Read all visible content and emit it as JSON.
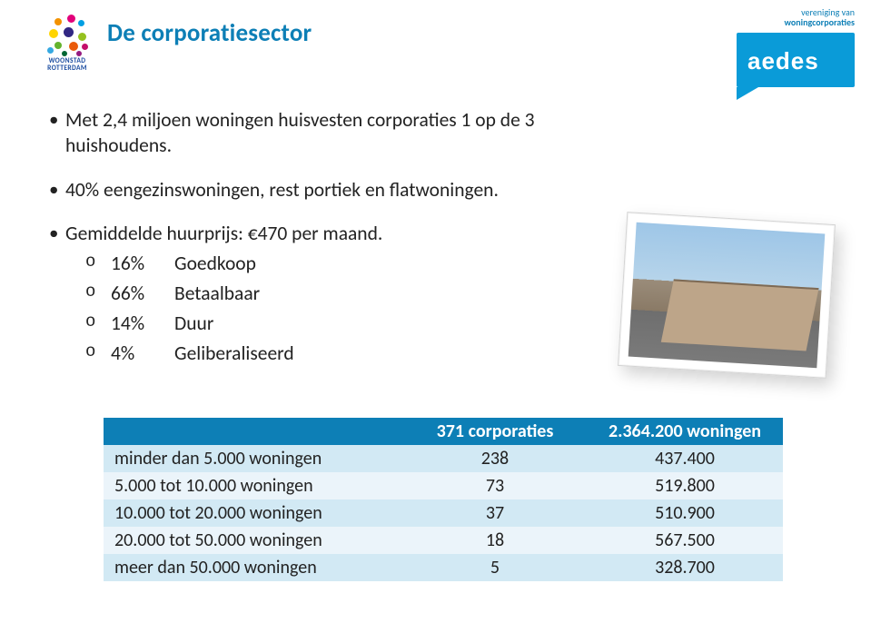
{
  "brand": {
    "aedes_caption_line1": "vereniging van",
    "aedes_caption_line2": "woningcorporaties",
    "aedes_name": "aedes",
    "woonstad_line1": "WOONSTAD",
    "woonstad_line2": "ROTTERDAM"
  },
  "title": "De corporatiesector",
  "bullets": {
    "b1": "Met 2,4 miljoen woningen huisvesten corporaties 1 op de 3 huishoudens.",
    "b2": "40% eengezinswoningen, rest portiek en flatwoningen.",
    "b3": "Gemiddelde huurprijs: €470 per maand.",
    "sub": [
      {
        "pct": "16%",
        "label": "Goedkoop"
      },
      {
        "pct": "66%",
        "label": "Betaalbaar"
      },
      {
        "pct": "14%",
        "label": "Duur"
      },
      {
        "pct": "4%",
        "label": "Geliberaliseerd"
      }
    ]
  },
  "table": {
    "header": {
      "col1": "",
      "col2": "371 corporaties",
      "col3": "2.364.200 woningen"
    },
    "rows": [
      {
        "label": "minder dan 5.000 woningen",
        "corp": "238",
        "won": "437.400"
      },
      {
        "label": "5.000 tot 10.000 woningen",
        "corp": "73",
        "won": "519.800"
      },
      {
        "label": "10.000 tot 20.000 woningen",
        "corp": "37",
        "won": "510.900"
      },
      {
        "label": "20.000 tot 50.000 woningen",
        "corp": "18",
        "won": "567.500"
      },
      {
        "label": "meer dan 50.000 woningen",
        "corp": "5",
        "won": "328.700"
      }
    ]
  },
  "colors": {
    "brand_blue": "#0d7fb6",
    "table_row_odd": "#d2e9f4",
    "table_row_even": "#ebf4fa",
    "aedes_blue": "#0a9bd8",
    "text": "#222222"
  },
  "dot_colors": [
    "#e2007a",
    "#f39200",
    "#ffd400",
    "#95c11f",
    "#009fe3",
    "#312783",
    "#63b32e",
    "#ea5b0c",
    "#c40f6b",
    "#36a9e1",
    "#006633",
    "#951b81"
  ]
}
